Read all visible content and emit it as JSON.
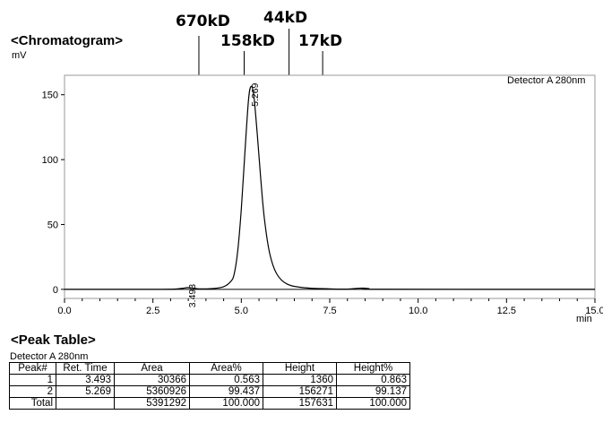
{
  "chart_title": "<Chromatogram>",
  "y_unit": "mV",
  "detector_label": "Detector A 280nm",
  "markers": [
    {
      "label": "670kD",
      "x": 3.8
    },
    {
      "label": "158kD",
      "x": 5.08
    },
    {
      "label": "44kD",
      "x": 6.35
    },
    {
      "label": "17kD",
      "x": 7.3
    }
  ],
  "chart_data": {
    "type": "line",
    "xlabel": "min",
    "ylabel": "mV",
    "xlim": [
      0,
      15
    ],
    "ylim": [
      -7,
      165
    ],
    "x_ticks": [
      0.0,
      2.5,
      5.0,
      7.5,
      10.0,
      12.5,
      15.0
    ],
    "x_tick_labels": [
      "0.0",
      "2.5",
      "5.0",
      "7.5",
      "10.0",
      "12.5",
      "15.0"
    ],
    "y_ticks": [
      0,
      50,
      100,
      150
    ],
    "y_tick_labels": [
      "0",
      "50",
      "100",
      "150"
    ],
    "series": [
      {
        "x": [
          0.0,
          2.5,
          3.0,
          3.2,
          3.35,
          3.493,
          3.65,
          3.8,
          4.2,
          4.5,
          4.7,
          4.8,
          4.9,
          5.0,
          5.1,
          5.2,
          5.269,
          5.35,
          5.45,
          5.55,
          5.65,
          5.8,
          6.0,
          6.3,
          6.8,
          7.5,
          8.0,
          8.3,
          8.45,
          8.6,
          9.0,
          15.0
        ],
        "values": [
          0.0,
          0.0,
          0.1,
          0.35,
          0.85,
          1.36,
          0.85,
          0.4,
          0.6,
          2.0,
          6.0,
          12.0,
          30.0,
          62.0,
          105.0,
          145.0,
          156.3,
          150.0,
          120.0,
          85.0,
          55.0,
          28.0,
          12.0,
          4.0,
          1.2,
          0.4,
          0.2,
          0.8,
          1.0,
          0.6,
          0.1,
          0.0
        ]
      }
    ],
    "peak_labels": [
      {
        "text": "3.493",
        "x": 3.493,
        "y": 1.36
      },
      {
        "text": "5.269",
        "x": 5.269,
        "y": 156.3
      }
    ]
  },
  "peak_table": {
    "title": "<Peak Table>",
    "detector": "Detector A 280nm",
    "headers": [
      "Peak#",
      "Ret. Time",
      "Area",
      "Area%",
      "Height",
      "Height%"
    ],
    "rows": [
      [
        "1",
        "3.493",
        "30366",
        "0.563",
        "1360",
        "0.863"
      ],
      [
        "2",
        "5.269",
        "5360926",
        "99.437",
        "156271",
        "99.137"
      ],
      [
        "Total",
        "",
        "5391292",
        "100.000",
        "157631",
        "100.000"
      ]
    ]
  }
}
